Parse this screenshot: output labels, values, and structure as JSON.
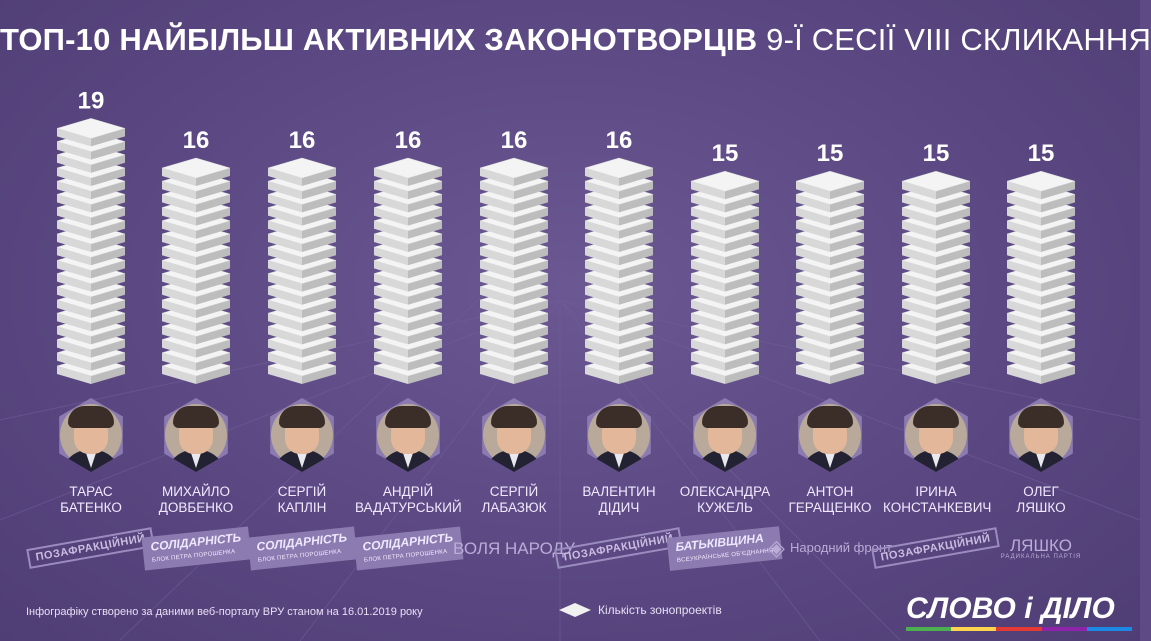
{
  "title": {
    "bold": "ТОП-10 НАЙБІЛЬШ АКТИВНИХ ЗАКОНОТВОРЦІВ",
    "light": "9-Ї СЕСІЇ VIII СКЛИКАННЯ"
  },
  "chart_data": {
    "type": "bar",
    "categories": [
      "Тарас Батенко",
      "Михайло Довбенко",
      "Сергій Каплін",
      "Андрій Вадатурський",
      "Сергій Лабазюк",
      "Валентин Дідич",
      "Олександра Кужель",
      "Антон Геращенко",
      "Ірина Констанкевич",
      "Олег Ляшко"
    ],
    "values": [
      19,
      16,
      16,
      16,
      16,
      16,
      15,
      15,
      15,
      15
    ],
    "legend": "Кількість зонопроектів",
    "value_labels": [
      "19",
      "16",
      "16",
      "16",
      "16",
      "16",
      "15",
      "15",
      "15",
      "15"
    ]
  },
  "people": [
    {
      "first": "ТАРАС",
      "last": "БАТЕНКО",
      "party": "ПОЗАФРАКЦІЙНИЙ",
      "party_style": "stamp"
    },
    {
      "first": "МИХАЙЛО",
      "last": "ДОВБЕНКО",
      "party": "СОЛІДАРНІСТЬ",
      "party_sub": "БЛОК ПЕТРА ПОРОШЕНКА",
      "party_style": "block"
    },
    {
      "first": "СЕРГІЙ",
      "last": "КАПЛІН",
      "party": "СОЛІДАРНІСТЬ",
      "party_sub": "БЛОК ПЕТРА ПОРОШЕНКА",
      "party_style": "block"
    },
    {
      "first": "АНДРІЙ",
      "last": "ВАДАТУРСЬКИЙ",
      "party": "СОЛІДАРНІСТЬ",
      "party_sub": "БЛОК ПЕТРА ПОРОШЕНКА",
      "party_style": "block"
    },
    {
      "first": "СЕРГІЙ",
      "last": "ЛАБАЗЮК",
      "party": "ВОЛЯ НАРОДУ",
      "party_style": "plain"
    },
    {
      "first": "ВАЛЕНТИН",
      "last": "ДІДИЧ",
      "party": "ПОЗАФРАКЦІЙНИЙ",
      "party_style": "stamp"
    },
    {
      "first": "ОЛЕКСАНДРА",
      "last": "КУЖЕЛЬ",
      "party": "БАТЬКІВЩИНА",
      "party_sub": "ВСЕУКРАЇНСЬКЕ ОБ'ЄДНАННЯ",
      "party_style": "block"
    },
    {
      "first": "АНТОН",
      "last": "ГЕРАЩЕНКО",
      "party": "Народний фронт",
      "party_style": "plain-small"
    },
    {
      "first": "ІРИНА",
      "last": "КОНСТАНКЕВИЧ",
      "party": "ПОЗАФРАКЦІЙНИЙ",
      "party_style": "stamp"
    },
    {
      "first": "ОЛЕГ",
      "last": "ЛЯШКО",
      "party": "ЛЯШКО",
      "party_sub": "РАДИКАЛЬНА ПАРТІЯ",
      "party_style": "plain"
    }
  ],
  "footer": {
    "note": "Інфографіку створено за даними веб-порталу ВРУ станом на 16.01.2019 року",
    "legend": "Кількість зонопроектів",
    "brand": "СЛОВО і ДІЛО"
  },
  "colors": {
    "background": "#5e4b86",
    "block_top": "#f4f4f4",
    "block_left": "#d8d8d8",
    "block_right": "#bdbdbd",
    "brand_stripes": [
      "#4caf50",
      "#ffd54f",
      "#e53935",
      "#8e24aa",
      "#1e88e5"
    ]
  }
}
